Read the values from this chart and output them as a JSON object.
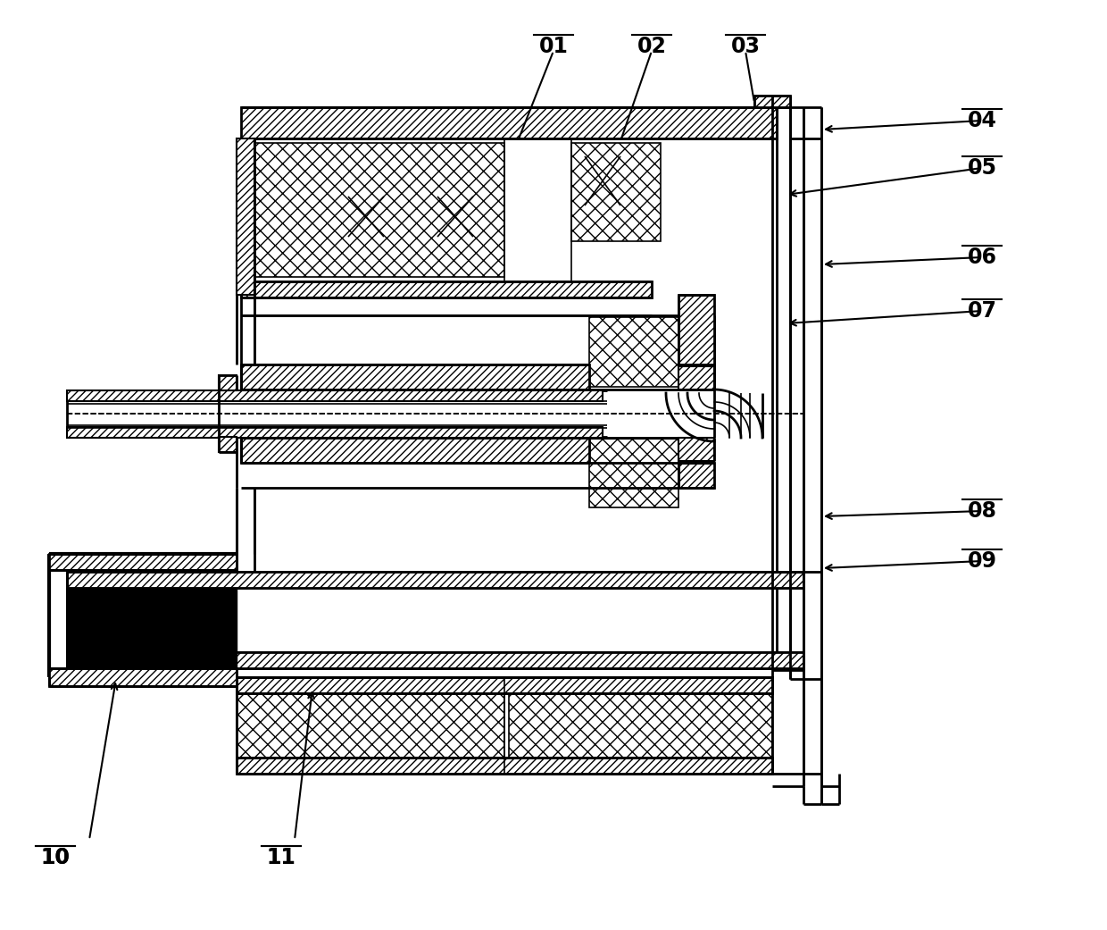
{
  "bg_color": "#ffffff",
  "line_color": "#000000",
  "figsize": [
    12.4,
    10.41
  ],
  "dpi": 100,
  "labels": [
    [
      "01",
      620,
      55,
      620,
      155
    ],
    [
      "02",
      730,
      55,
      710,
      155
    ],
    [
      "03",
      830,
      55,
      845,
      120
    ],
    [
      "04",
      1130,
      135,
      975,
      145
    ],
    [
      "05",
      1130,
      185,
      940,
      220
    ],
    [
      "06",
      1130,
      285,
      975,
      295
    ],
    [
      "07",
      1130,
      345,
      890,
      360
    ],
    [
      "08",
      1130,
      575,
      975,
      580
    ],
    [
      "09",
      1130,
      625,
      975,
      635
    ],
    [
      "10",
      60,
      960,
      60,
      960
    ],
    [
      "11",
      310,
      960,
      310,
      960
    ]
  ]
}
